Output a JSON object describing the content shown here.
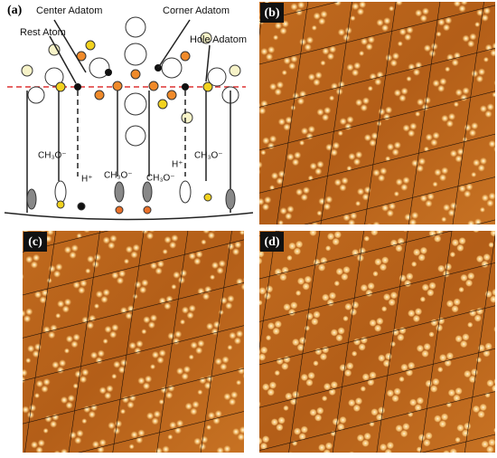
{
  "panel_a": {
    "label": "(a)",
    "atom_labels": [
      "Center Adatom",
      "Corner Adatom",
      "Rest Atom",
      "Hole Adatom"
    ],
    "species_labels": [
      "CH₃O⁻",
      "H⁺",
      "CH₃O⁻",
      "CH₃O⁻",
      "H⁺",
      "CH₃O⁻"
    ]
  },
  "panel_b": {
    "label": "(b)"
  },
  "panel_c": {
    "label": "(c)"
  },
  "panel_d": {
    "label": "(d)"
  }
}
